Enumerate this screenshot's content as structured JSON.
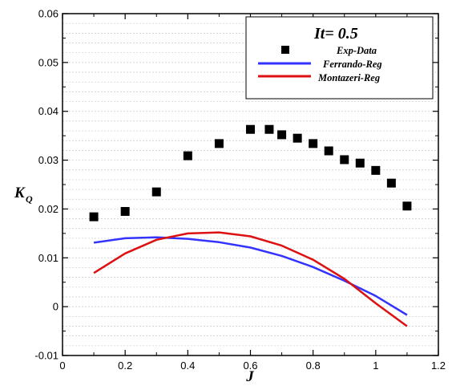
{
  "chart_data": {
    "type": "line",
    "title": "",
    "annotation": "It= 0.5",
    "xlabel": "J",
    "ylabel_main": "K",
    "ylabel_sub": "Q",
    "xlim": [
      0,
      1.2
    ],
    "ylim": [
      -0.01,
      0.06
    ],
    "x_ticks": [
      0,
      0.2,
      0.4,
      0.6,
      0.8,
      1,
      1.2
    ],
    "x_tick_labels": [
      "0",
      "0.2",
      "0.4",
      "0.6",
      "0.8",
      "1",
      "1.2"
    ],
    "y_ticks": [
      -0.01,
      0,
      0.01,
      0.02,
      0.03,
      0.04,
      0.05,
      0.06
    ],
    "y_tick_labels": [
      "-0.01",
      "0",
      "0.01",
      "0.02",
      "0.03",
      "0.04",
      "0.05",
      "0.06"
    ],
    "grid": true,
    "legend_position": "top-right",
    "series": [
      {
        "name": "Exp-Data",
        "kind": "scatter",
        "color": "#000000",
        "x": [
          0.1,
          0.2,
          0.3,
          0.4,
          0.5,
          0.6,
          0.66,
          0.7,
          0.75,
          0.8,
          0.85,
          0.9,
          0.95,
          1.0,
          1.05,
          1.1
        ],
        "y": [
          0.0184,
          0.0195,
          0.0235,
          0.0309,
          0.0334,
          0.0363,
          0.0363,
          0.0352,
          0.0345,
          0.0334,
          0.0319,
          0.0301,
          0.0294,
          0.0279,
          0.0253,
          0.0206
        ]
      },
      {
        "name": "Ferrando-Reg",
        "kind": "line",
        "color": "#3333ff",
        "x": [
          0.1,
          0.2,
          0.3,
          0.4,
          0.5,
          0.6,
          0.7,
          0.8,
          0.9,
          1.0,
          1.1
        ],
        "y": [
          0.0131,
          0.014,
          0.0142,
          0.0139,
          0.0132,
          0.0121,
          0.0104,
          0.0081,
          0.0053,
          0.0022,
          -0.0017
        ]
      },
      {
        "name": "Montazeri-Reg",
        "kind": "line",
        "color": "#dd1111",
        "x": [
          0.1,
          0.2,
          0.3,
          0.4,
          0.5,
          0.6,
          0.7,
          0.8,
          0.9,
          1.0,
          1.1
        ],
        "y": [
          0.0069,
          0.0109,
          0.0137,
          0.015,
          0.0152,
          0.0144,
          0.0125,
          0.0096,
          0.0057,
          0.0007,
          -0.004
        ]
      }
    ]
  }
}
